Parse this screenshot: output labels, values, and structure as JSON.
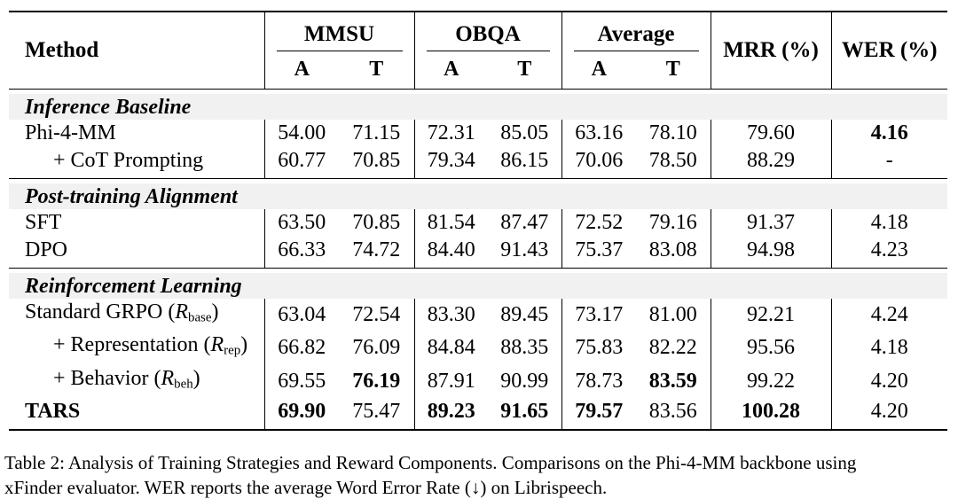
{
  "colors": {
    "background": "#ffffff",
    "text": "#000000",
    "rule": "#000000",
    "section_band": "#f1f1f1"
  },
  "table": {
    "columns": {
      "method": "Method",
      "groups": [
        {
          "label": "MMSU",
          "subcols": [
            "A",
            "T"
          ]
        },
        {
          "label": "OBQA",
          "subcols": [
            "A",
            "T"
          ]
        },
        {
          "label": "Average",
          "subcols": [
            "A",
            "T"
          ]
        }
      ],
      "singles": [
        "MRR (%)",
        "WER (%)"
      ]
    },
    "sections": [
      {
        "title": "Inference Baseline",
        "rows": [
          {
            "label": [
              {
                "t": "Phi-4-MM"
              }
            ],
            "indent": false,
            "bold_label": false,
            "cells": [
              {
                "v": "54.00",
                "b": false
              },
              {
                "v": "71.15",
                "b": false
              },
              {
                "v": "72.31",
                "b": false
              },
              {
                "v": "85.05",
                "b": false
              },
              {
                "v": "63.16",
                "b": false
              },
              {
                "v": "78.10",
                "b": false
              },
              {
                "v": "79.60",
                "b": false
              },
              {
                "v": "4.16",
                "b": true
              }
            ]
          },
          {
            "label": [
              {
                "t": "+ CoT Prompting"
              }
            ],
            "indent": true,
            "bold_label": false,
            "cells": [
              {
                "v": "60.77",
                "b": false
              },
              {
                "v": "70.85",
                "b": false
              },
              {
                "v": "79.34",
                "b": false
              },
              {
                "v": "86.15",
                "b": false
              },
              {
                "v": "70.06",
                "b": false
              },
              {
                "v": "78.50",
                "b": false
              },
              {
                "v": "88.29",
                "b": false
              },
              {
                "v": "-",
                "b": false
              }
            ]
          }
        ]
      },
      {
        "title": "Post-training Alignment",
        "rows": [
          {
            "label": [
              {
                "t": "SFT"
              }
            ],
            "indent": false,
            "bold_label": false,
            "cells": [
              {
                "v": "63.50",
                "b": false
              },
              {
                "v": "70.85",
                "b": false
              },
              {
                "v": "81.54",
                "b": false
              },
              {
                "v": "87.47",
                "b": false
              },
              {
                "v": "72.52",
                "b": false
              },
              {
                "v": "79.16",
                "b": false
              },
              {
                "v": "91.37",
                "b": false
              },
              {
                "v": "4.18",
                "b": false
              }
            ]
          },
          {
            "label": [
              {
                "t": "DPO"
              }
            ],
            "indent": false,
            "bold_label": false,
            "cells": [
              {
                "v": "66.33",
                "b": false
              },
              {
                "v": "74.72",
                "b": false
              },
              {
                "v": "84.40",
                "b": false
              },
              {
                "v": "91.43",
                "b": false
              },
              {
                "v": "75.37",
                "b": false
              },
              {
                "v": "83.08",
                "b": false
              },
              {
                "v": "94.98",
                "b": false
              },
              {
                "v": "4.23",
                "b": false
              }
            ]
          }
        ]
      },
      {
        "title": "Reinforcement Learning",
        "rows": [
          {
            "label": [
              {
                "t": "Standard GRPO ("
              },
              {
                "t": "R",
                "math": true
              },
              {
                "t": "base",
                "sub": true
              },
              {
                "t": ")"
              }
            ],
            "indent": false,
            "bold_label": false,
            "cells": [
              {
                "v": "63.04",
                "b": false
              },
              {
                "v": "72.54",
                "b": false
              },
              {
                "v": "83.30",
                "b": false
              },
              {
                "v": "89.45",
                "b": false
              },
              {
                "v": "73.17",
                "b": false
              },
              {
                "v": "81.00",
                "b": false
              },
              {
                "v": "92.21",
                "b": false
              },
              {
                "v": "4.24",
                "b": false
              }
            ]
          },
          {
            "label": [
              {
                "t": "+ Representation ("
              },
              {
                "t": "R",
                "math": true
              },
              {
                "t": "rep",
                "sub": true
              },
              {
                "t": ")"
              }
            ],
            "indent": true,
            "bold_label": false,
            "cells": [
              {
                "v": "66.82",
                "b": false
              },
              {
                "v": "76.09",
                "b": false
              },
              {
                "v": "84.84",
                "b": false
              },
              {
                "v": "88.35",
                "b": false
              },
              {
                "v": "75.83",
                "b": false
              },
              {
                "v": "82.22",
                "b": false
              },
              {
                "v": "95.56",
                "b": false
              },
              {
                "v": "4.18",
                "b": false
              }
            ]
          },
          {
            "label": [
              {
                "t": "+ Behavior ("
              },
              {
                "t": "R",
                "math": true
              },
              {
                "t": "beh",
                "sub": true
              },
              {
                "t": ")"
              }
            ],
            "indent": true,
            "bold_label": false,
            "cells": [
              {
                "v": "69.55",
                "b": false
              },
              {
                "v": "76.19",
                "b": true
              },
              {
                "v": "87.91",
                "b": false
              },
              {
                "v": "90.99",
                "b": false
              },
              {
                "v": "78.73",
                "b": false
              },
              {
                "v": "83.59",
                "b": true
              },
              {
                "v": "99.22",
                "b": false
              },
              {
                "v": "4.20",
                "b": false
              }
            ]
          },
          {
            "label": [
              {
                "t": "TARS"
              }
            ],
            "indent": false,
            "bold_label": true,
            "cells": [
              {
                "v": "69.90",
                "b": true
              },
              {
                "v": "75.47",
                "b": false
              },
              {
                "v": "89.23",
                "b": true
              },
              {
                "v": "91.65",
                "b": true
              },
              {
                "v": "79.57",
                "b": true
              },
              {
                "v": "83.56",
                "b": false
              },
              {
                "v": "100.28",
                "b": true
              },
              {
                "v": "4.20",
                "b": false
              }
            ]
          }
        ]
      }
    ]
  },
  "caption": {
    "lines": [
      "Table 2: Analysis of Training Strategies and Reward Components. Comparisons on the Phi-4-MM backbone using",
      "xFinder evaluator. WER reports the average Word Error Rate (↓) on Librispeech."
    ]
  }
}
